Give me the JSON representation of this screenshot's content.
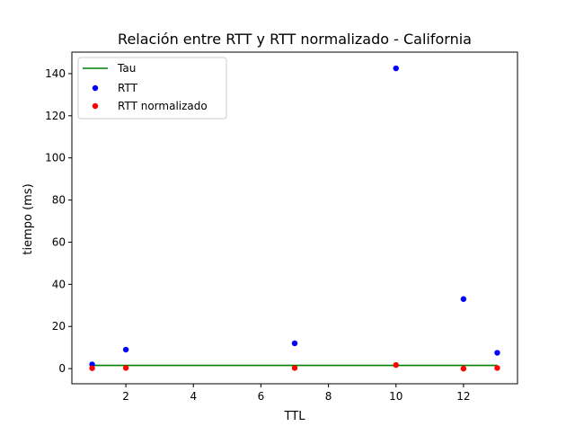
{
  "chart_data": {
    "type": "scatter",
    "title": "Relación entre RTT y RTT normalizado - California",
    "xlabel": "TTL",
    "ylabel": "tiempo (ms)",
    "xlim": [
      0.4,
      13.6
    ],
    "ylim": [
      -7.2,
      150.2
    ],
    "xticks": [
      2,
      4,
      6,
      8,
      10,
      12
    ],
    "yticks": [
      0,
      20,
      40,
      60,
      80,
      100,
      120,
      140
    ],
    "grid": false,
    "legend_position": "top-left",
    "series": [
      {
        "name": "Tau",
        "kind": "line",
        "color": "#008000",
        "x": [
          1,
          13
        ],
        "y": [
          1.5,
          1.5
        ]
      },
      {
        "name": "RTT",
        "kind": "scatter",
        "color": "#0000ff",
        "x": [
          1,
          2,
          7,
          10,
          12,
          13
        ],
        "y": [
          2.0,
          9.0,
          12.0,
          142.5,
          33.0,
          7.5
        ]
      },
      {
        "name": "RTT normalizado",
        "kind": "scatter",
        "color": "#ff0000",
        "x": [
          1,
          2,
          7,
          10,
          12,
          13
        ],
        "y": [
          0.2,
          0.3,
          0.3,
          1.7,
          0.0,
          0.3
        ]
      }
    ]
  }
}
